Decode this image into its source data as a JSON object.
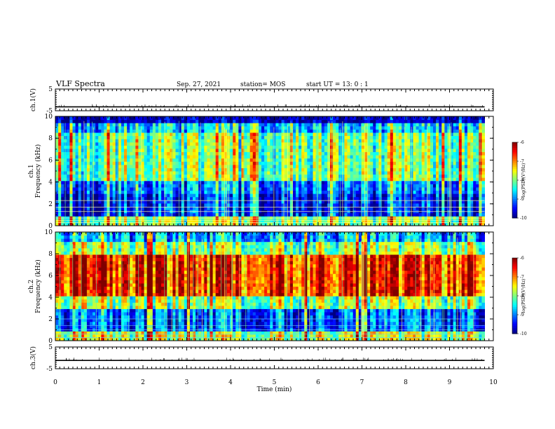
{
  "header": {
    "title": "VLF Spectra",
    "date": "Sep. 27, 2021",
    "station": "station= MOS",
    "start_ut": "start  UT =  13: 0  : 1"
  },
  "chart_data": [
    {
      "type": "line",
      "ylabel": "ch.1(V)",
      "ylim": [
        -5,
        5
      ],
      "yticks": [
        "5",
        "-5"
      ],
      "series": [
        {
          "x": [
            0,
            9.8
          ],
          "y": [
            -3.2,
            -3.2
          ]
        }
      ]
    },
    {
      "type": "heatmap",
      "ylabel": [
        "ch.1",
        "Frequency (kHz)"
      ],
      "ylim": [
        0,
        10
      ],
      "yticks": [
        "0",
        "2",
        "4",
        "6",
        "8",
        "10"
      ],
      "xlim": [
        0,
        10
      ],
      "data_x_end": 9.8,
      "colorbar": {
        "label": "log(PSD)(V²/Hz)",
        "ticks": [
          "-6",
          "-7",
          "-8",
          "-9",
          "-10"
        ],
        "range": [
          -10,
          -6
        ]
      },
      "bands": [
        {
          "from": 0,
          "to": 0.9,
          "level": 0.5
        },
        {
          "from": 0.9,
          "to": 2.8,
          "level": 0.12
        },
        {
          "from": 2.8,
          "to": 4.2,
          "level": 0.22
        },
        {
          "from": 4.2,
          "to": 8.6,
          "level": 0.48
        },
        {
          "from": 8.6,
          "to": 9.3,
          "level": 0.3
        },
        {
          "from": 9.3,
          "to": 10,
          "level": 0.05
        }
      ],
      "lines_khz": [
        0.3,
        0.5,
        0.7,
        1.3,
        1.7,
        2.3
      ]
    },
    {
      "type": "heatmap",
      "ylabel": [
        "ch.2",
        "Frequency (kHz)"
      ],
      "ylim": [
        0,
        10
      ],
      "yticks": [
        "0",
        "2",
        "4",
        "6",
        "8",
        "10"
      ],
      "xlim": [
        0,
        10
      ],
      "data_x_end": 9.8,
      "colorbar": {
        "label": "log(PSD)(V²/Hz)",
        "ticks": [
          "-6",
          "-7",
          "-8",
          "-9",
          "-10"
        ],
        "range": [
          -10,
          -6
        ]
      },
      "bands": [
        {
          "from": 0,
          "to": 0.9,
          "level": 0.55
        },
        {
          "from": 0.9,
          "to": 3.0,
          "level": 0.18
        },
        {
          "from": 3.0,
          "to": 4.0,
          "level": 0.5
        },
        {
          "from": 4.0,
          "to": 8.0,
          "level": 0.82
        },
        {
          "from": 8.0,
          "to": 9.0,
          "level": 0.5
        },
        {
          "from": 9.0,
          "to": 10,
          "level": 0.28
        }
      ],
      "lines_khz": [
        0.3,
        0.6,
        1.0,
        1.4,
        2.0
      ]
    },
    {
      "type": "line",
      "ylabel": "ch.3(V)",
      "ylim": [
        -5,
        5
      ],
      "yticks": [
        "5",
        "-5"
      ],
      "xlabel": "Time (min)",
      "xticks": [
        "0",
        "1",
        "2",
        "3",
        "4",
        "5",
        "6",
        "7",
        "8",
        "9",
        "10"
      ],
      "xlim": [
        0,
        10
      ],
      "series": [
        {
          "x": [
            0,
            9.8
          ],
          "y": [
            -1.2,
            -1.2
          ]
        }
      ]
    }
  ]
}
